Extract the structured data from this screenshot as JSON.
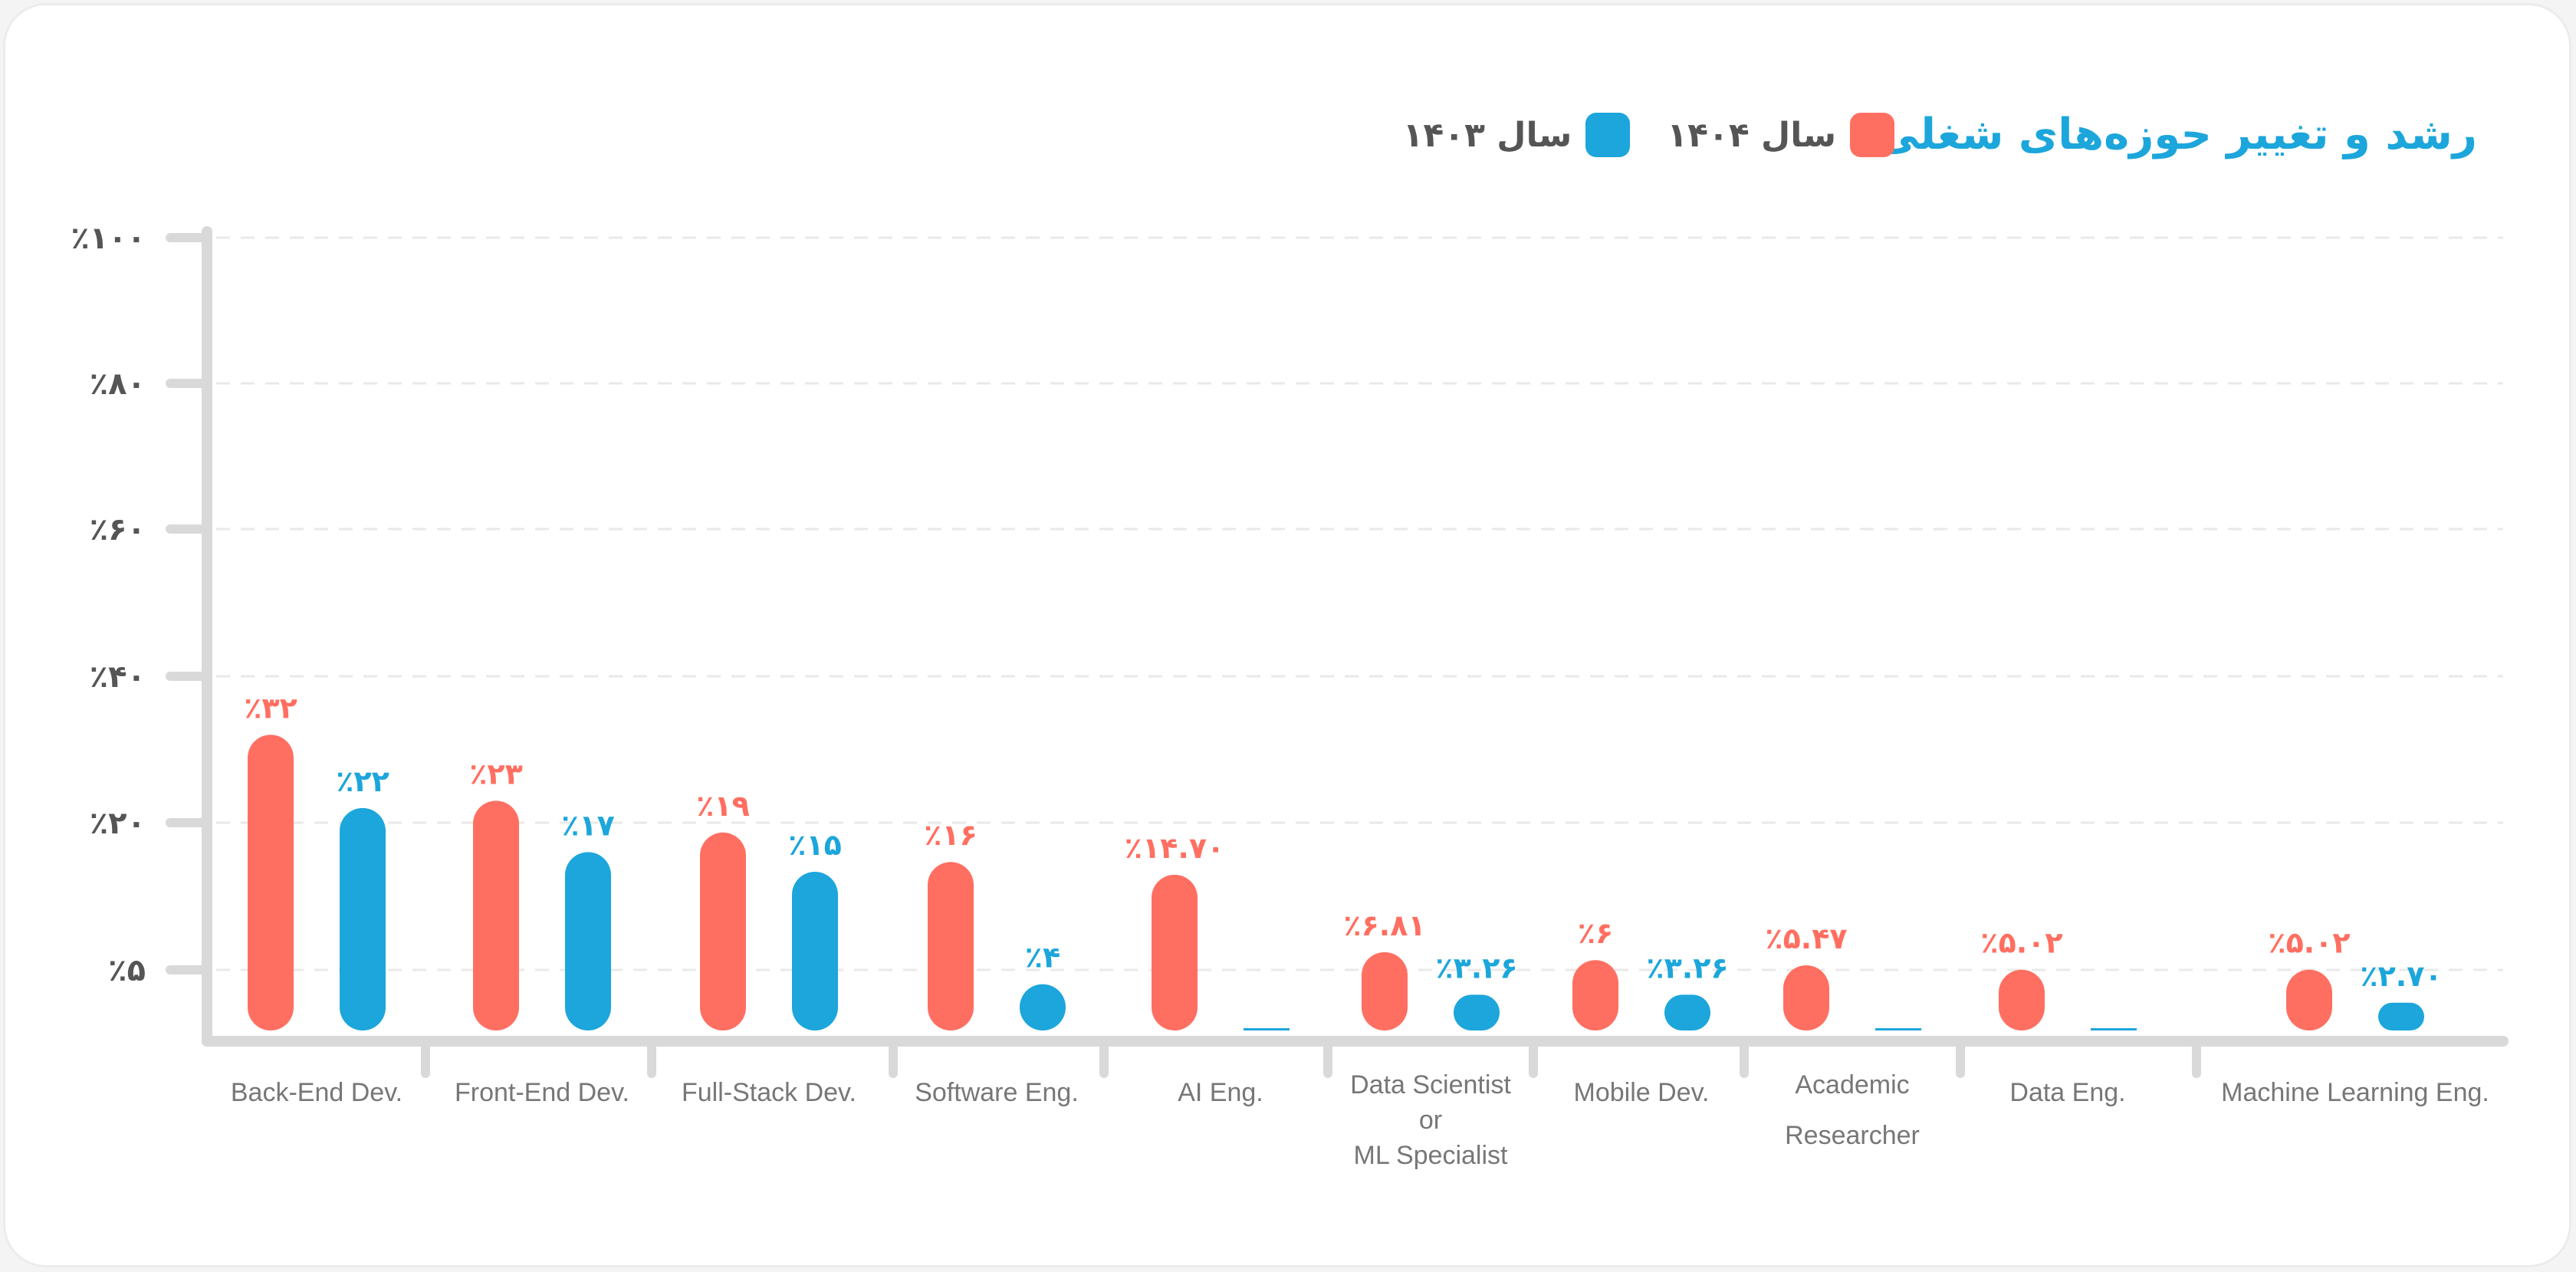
{
  "chart_data": {
    "type": "bar",
    "title": "رشد و تغییر حوزه‌های شغلی",
    "legend": {
      "placement": "top-right"
    },
    "grid": true,
    "y_ticks": [
      "٪۵",
      "٪۲۰",
      "٪۴۰",
      "٪۶۰",
      "٪۸۰",
      "٪۱۰۰"
    ],
    "y_tick_values": [
      5,
      20,
      40,
      60,
      80,
      100
    ],
    "ylim": [
      0,
      100
    ],
    "categories": [
      [
        "Back-End Dev."
      ],
      [
        "Front-End Dev."
      ],
      [
        "Full-Stack Dev."
      ],
      [
        "Software Eng."
      ],
      [
        "AI Eng."
      ],
      [
        "Data Scientist",
        "or",
        "ML Specialist"
      ],
      [
        "Mobile Dev."
      ],
      [
        "Academic",
        "Researcher"
      ],
      [
        "Data Eng."
      ],
      [
        "Machine Learning Eng."
      ]
    ],
    "series": [
      {
        "name": "سال ۱۴۰۴",
        "color": "#ff6f61",
        "values": [
          32,
          23,
          19,
          16,
          14.7,
          6.81,
          6,
          5.47,
          5.02,
          5.02
        ],
        "labels": [
          "٪۳۲",
          "٪۲۳",
          "٪۱۹",
          "٪۱۶",
          "٪۱۴.۷۰",
          "٪۶.۸۱",
          "٪۶",
          "٪۵.۴۷",
          "٪۵.۰۲",
          "٪۵.۰۲"
        ]
      },
      {
        "name": "سال ۱۴۰۳",
        "color": "#1ca6db",
        "values": [
          22,
          17,
          15,
          4,
          0,
          3.26,
          3.26,
          0,
          0,
          2.7
        ],
        "labels": [
          "٪۲۲",
          "٪۱۷",
          "٪۱۵",
          "٪۴",
          "",
          "٪۳.۲۶",
          "٪۳.۲۶",
          "",
          "",
          "٪۲.۷۰"
        ]
      }
    ]
  }
}
